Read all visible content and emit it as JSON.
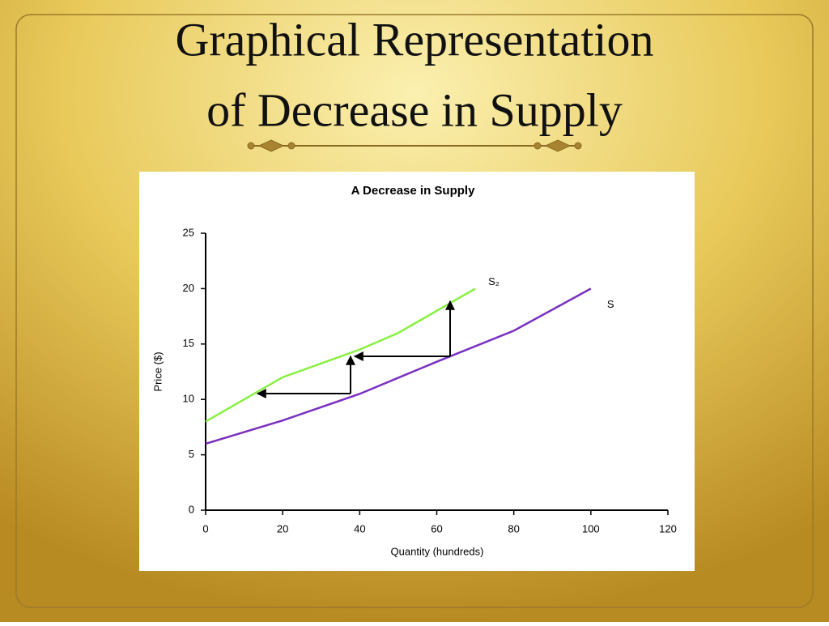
{
  "slide": {
    "title_lines": [
      "Graphical Representation",
      "of Decrease in Supply"
    ]
  },
  "chart_data": {
    "type": "line",
    "title": "A Decrease in Supply",
    "xlabel": "Quantity (hundreds)",
    "ylabel": "Price ($)",
    "xlim": [
      0,
      120
    ],
    "xticks": [
      0,
      20,
      40,
      60,
      80,
      100,
      120
    ],
    "ylim": [
      0,
      25
    ],
    "yticks": [
      0,
      5,
      10,
      15,
      20,
      25
    ],
    "grid": false,
    "series": [
      {
        "name": "S",
        "color": "#7a2fc0",
        "x": [
          0,
          20,
          40,
          60,
          80,
          100
        ],
        "values": [
          6,
          8.1,
          10.5,
          13.4,
          16.2,
          20
        ]
      },
      {
        "name": "S₂",
        "color": "#88f040",
        "x": [
          0,
          20,
          40,
          50,
          70
        ],
        "values": [
          8,
          12,
          14.5,
          16,
          20
        ]
      }
    ]
  }
}
